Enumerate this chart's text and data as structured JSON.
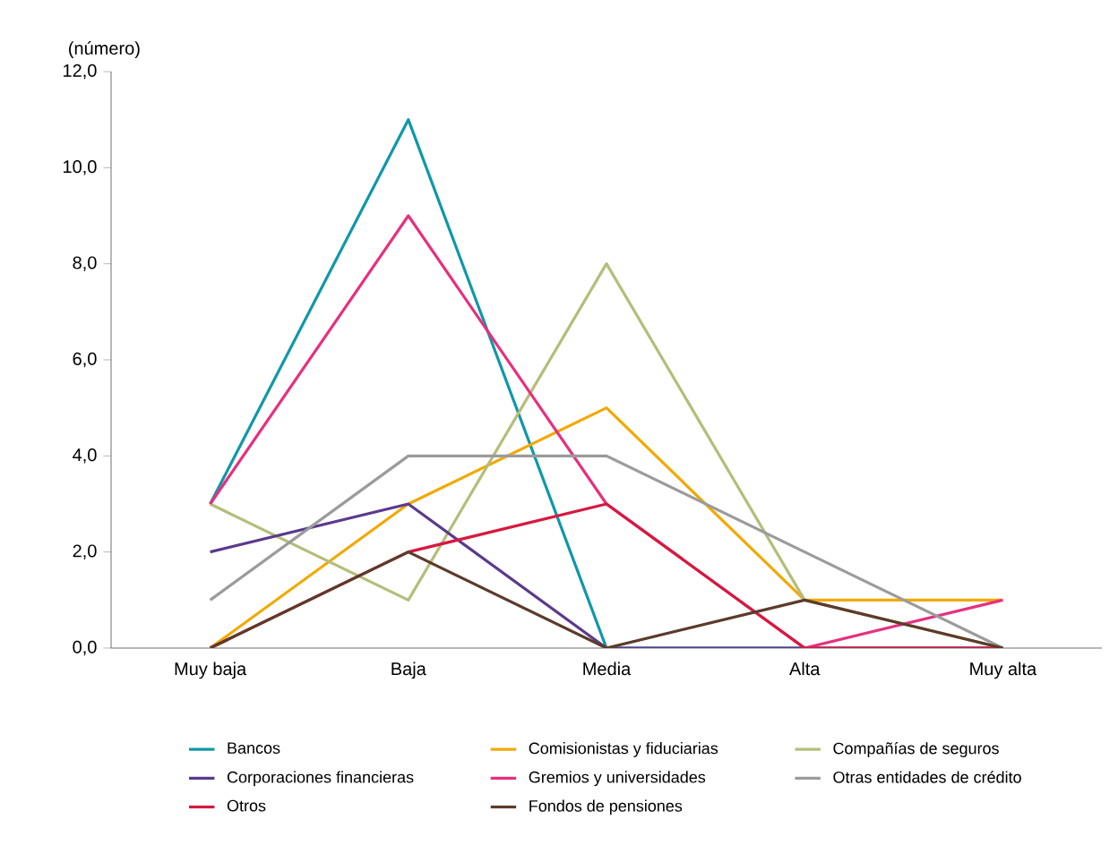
{
  "chart_data": {
    "type": "line",
    "ylabel": "(número)",
    "categories": [
      "Muy baja",
      "Baja",
      "Media",
      "Alta",
      "Muy alta"
    ],
    "ylim": [
      0,
      12
    ],
    "yticks": [
      {
        "value": 0,
        "label": "0,0"
      },
      {
        "value": 2,
        "label": "2,0"
      },
      {
        "value": 4,
        "label": "4,0"
      },
      {
        "value": 6,
        "label": "6,0"
      },
      {
        "value": 8,
        "label": "8,0"
      },
      {
        "value": 10,
        "label": "10,0"
      },
      {
        "value": 12,
        "label": "12,0"
      }
    ],
    "legend": "bottom",
    "grid": false,
    "line_style": "solid",
    "series": [
      {
        "name": "Bancos",
        "color": "#0f98a8",
        "values": [
          3,
          11,
          0,
          0,
          0
        ]
      },
      {
        "name": "Comisionistas y fiduciarias",
        "color": "#f2a900",
        "values": [
          0,
          3,
          5,
          1,
          1
        ]
      },
      {
        "name": "Compañías de seguros",
        "color": "#b5bd7a",
        "values": [
          3,
          1,
          8,
          1,
          0
        ]
      },
      {
        "name": "Corporaciones financieras",
        "color": "#5b3a8c",
        "values": [
          2,
          3,
          0,
          0,
          0
        ]
      },
      {
        "name": "Gremios y universidades",
        "color": "#e6307e",
        "values": [
          3,
          9,
          3,
          0,
          1
        ]
      },
      {
        "name": "Otras entidades de crédito",
        "color": "#9b9b9b",
        "values": [
          1,
          4,
          4,
          2,
          0
        ]
      },
      {
        "name": "Otros",
        "color": "#d7193f",
        "values": [
          0,
          2,
          3,
          0,
          0
        ]
      },
      {
        "name": "Fondos de pensiones",
        "color": "#5c3b2a",
        "values": [
          0,
          2,
          0,
          1,
          0
        ]
      }
    ]
  }
}
